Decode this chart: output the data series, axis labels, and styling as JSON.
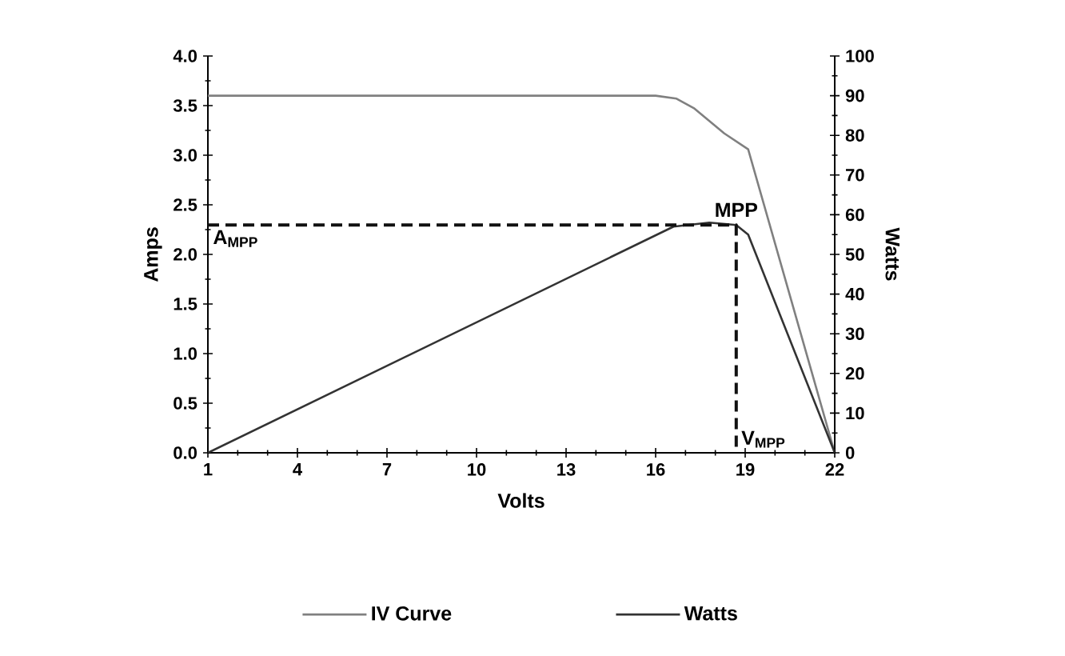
{
  "chart_data": {
    "type": "line",
    "xlabel": "Volts",
    "ylabel": "Amps",
    "y2label": "Watts",
    "legend": "bottom",
    "xlim": [
      1,
      22
    ],
    "xticks": [
      1,
      4,
      7,
      10,
      13,
      16,
      19,
      22
    ],
    "ylim": [
      0,
      4
    ],
    "yticks": [
      {
        "value": 0,
        "label": "0.0"
      },
      {
        "value": 0.5,
        "label": "0.5"
      },
      {
        "value": 1,
        "label": "1.0"
      },
      {
        "value": 1.5,
        "label": "1.5"
      },
      {
        "value": 2,
        "label": "2.0"
      },
      {
        "value": 2.5,
        "label": "2.5"
      },
      {
        "value": 3,
        "label": "3.0"
      },
      {
        "value": 3.5,
        "label": "3.5"
      },
      {
        "value": 4,
        "label": "4.0"
      }
    ],
    "y2lim": [
      0,
      100
    ],
    "y2ticks": [
      0,
      10,
      20,
      30,
      40,
      50,
      60,
      70,
      80,
      90,
      100
    ],
    "series": [
      {
        "name": "IV Curve",
        "color": "#808080",
        "x": [
          1,
          16,
          16.7,
          17.3,
          18.3,
          19.1,
          22
        ],
        "values": [
          3.6,
          3.6,
          3.57,
          3.47,
          3.22,
          3.06,
          0
        ]
      },
      {
        "name": "Watts",
        "color": "#333333",
        "axis": "y2",
        "x": [
          1,
          16.6,
          17.8,
          18.7,
          19.1,
          22
        ],
        "values": [
          0,
          57,
          58,
          57.4,
          55,
          0
        ]
      },
      {
        "color": "#111111",
        "axis": "y2",
        "line_style": "dashed",
        "x": [
          1,
          18.7,
          18.7
        ],
        "values": [
          57.4,
          57.4,
          0
        ]
      }
    ],
    "annotations": [
      "MPP",
      "A$_{MPP}$",
      "V$_{MPP}$"
    ]
  }
}
